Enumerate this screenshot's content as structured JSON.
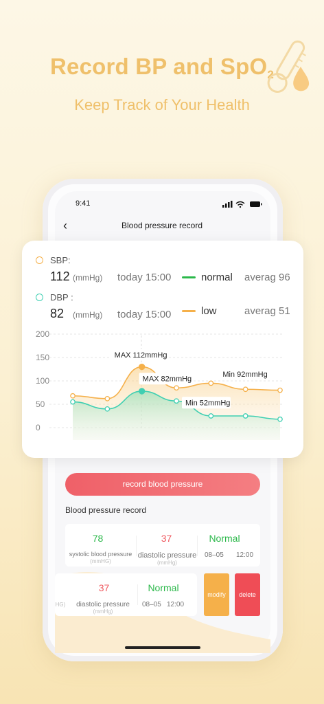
{
  "hero": {
    "title": "Record BP and SpO",
    "title_sub": "2",
    "subtitle": "Keep Track of Your Health"
  },
  "status_bar": {
    "time": "9:41"
  },
  "nav": {
    "title": "Blood pressure record"
  },
  "summary": {
    "sbp_label": "SBP:",
    "sbp_value": "112",
    "sbp_unit": "(mmHg)",
    "sbp_time": "today 15:00",
    "dbp_label": "DBP :",
    "dbp_value": "82",
    "dbp_unit": "(mmHg)",
    "dbp_time": "today 15:00",
    "legend_normal": "normal",
    "legend_low": "low",
    "avg_normal": "averag 96",
    "avg_low": "averag 51"
  },
  "colors": {
    "orange": "#f5b04a",
    "teal": "#3fcfb2",
    "green_line": "#2bb84a",
    "red": "#ef5a60",
    "hero": "#efc06b"
  },
  "chart_data": {
    "type": "area",
    "ylim": [
      0,
      200
    ],
    "yticks": [
      "200",
      "150",
      "100",
      "50",
      "0"
    ],
    "series": [
      {
        "values": [
          68,
          62,
          130,
          85,
          95,
          82,
          80
        ]
      },
      {
        "values": [
          55,
          40,
          78,
          57,
          25,
          25,
          18
        ]
      }
    ],
    "annotations": [
      "MAX 112mmHg",
      "MAX 82mmHg",
      "Min 92mmHg",
      "Min 52mmHg"
    ]
  },
  "record_button": "record blood pressure",
  "record_section_title": "Blood pressure record",
  "records": [
    {
      "systolic": "78",
      "systolic_label": "systolic blood pressure",
      "systolic_unit": "(mmHG)",
      "diastolic": "37",
      "diastolic_label": "diastolic pressure",
      "diastolic_unit": "(mmHg)",
      "status": "Normal",
      "date": "08–05",
      "time": "12:00"
    },
    {
      "systolic_unit": "HG)",
      "diastolic": "37",
      "diastolic_label": "diastolic pressure",
      "diastolic_unit": "(mmHg)",
      "status": "Normal",
      "date": "08–05",
      "time": "12:00",
      "modify": "modify",
      "delete": "delete"
    }
  ]
}
